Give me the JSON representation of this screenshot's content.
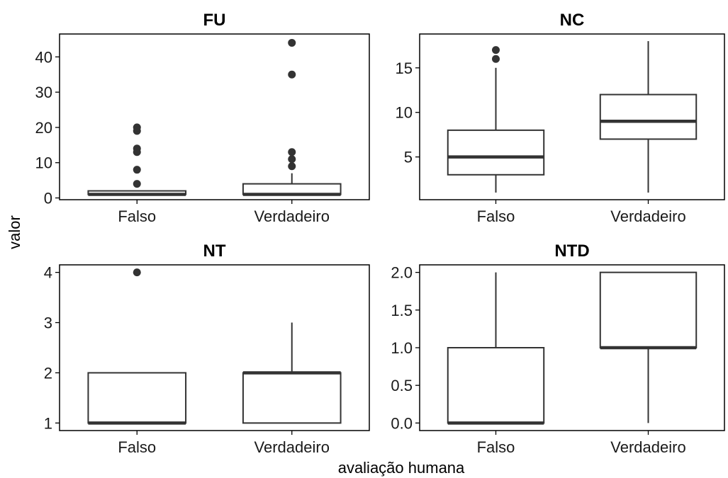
{
  "figure": {
    "ylabel": "valor",
    "xlabel": "avaliação humana"
  },
  "colors": {
    "box_stroke": "#333333",
    "median": "#333333",
    "outlier": "#333333",
    "axis": "#000000",
    "background": "#ffffff"
  },
  "chart_data": [
    {
      "type": "box",
      "title": "FU",
      "categories": [
        "Falso",
        "Verdadeiro"
      ],
      "ylim": [
        -0.5,
        46.5
      ],
      "yticks": [
        0,
        10,
        20,
        30,
        40
      ],
      "ytick_labels": [
        "0",
        "10",
        "20",
        "30",
        "40"
      ],
      "boxes": [
        {
          "q1": 1,
          "median": 1,
          "q3": 2,
          "whisker_low": 1,
          "whisker_high": 2,
          "outliers": [
            4,
            8,
            13,
            14,
            19,
            20
          ]
        },
        {
          "q1": 1,
          "median": 1,
          "q3": 4,
          "whisker_low": 1,
          "whisker_high": 7,
          "outliers": [
            9,
            11,
            13,
            35,
            44
          ]
        }
      ]
    },
    {
      "type": "box",
      "title": "NC",
      "categories": [
        "Falso",
        "Verdadeiro"
      ],
      "ylim": [
        0.2,
        18.8
      ],
      "yticks": [
        5,
        10,
        15
      ],
      "ytick_labels": [
        "5",
        "10",
        "15"
      ],
      "boxes": [
        {
          "q1": 3,
          "median": 5,
          "q3": 8,
          "whisker_low": 1,
          "whisker_high": 15,
          "outliers": [
            16,
            17
          ]
        },
        {
          "q1": 7,
          "median": 9,
          "q3": 12,
          "whisker_low": 1,
          "whisker_high": 18,
          "outliers": []
        }
      ]
    },
    {
      "type": "box",
      "title": "NT",
      "categories": [
        "Falso",
        "Verdadeiro"
      ],
      "ylim": [
        0.85,
        4.15
      ],
      "yticks": [
        1,
        2,
        3,
        4
      ],
      "ytick_labels": [
        "1",
        "2",
        "3",
        "4"
      ],
      "boxes": [
        {
          "q1": 1,
          "median": 1,
          "q3": 2,
          "whisker_low": 1,
          "whisker_high": 2,
          "outliers": [
            4
          ]
        },
        {
          "q1": 1,
          "median": 2,
          "q3": 2,
          "whisker_low": 1,
          "whisker_high": 3,
          "outliers": []
        }
      ]
    },
    {
      "type": "box",
      "title": "NTD",
      "categories": [
        "Falso",
        "Verdadeiro"
      ],
      "ylim": [
        -0.1,
        2.1
      ],
      "yticks": [
        0,
        0.5,
        1,
        1.5,
        2
      ],
      "ytick_labels": [
        "0.0",
        "0.5",
        "1.0",
        "1.5",
        "2.0"
      ],
      "boxes": [
        {
          "q1": 0,
          "median": 0,
          "q3": 1,
          "whisker_low": 0,
          "whisker_high": 2,
          "outliers": []
        },
        {
          "q1": 1,
          "median": 1,
          "q3": 2,
          "whisker_low": 0,
          "whisker_high": 2,
          "outliers": []
        }
      ]
    }
  ]
}
